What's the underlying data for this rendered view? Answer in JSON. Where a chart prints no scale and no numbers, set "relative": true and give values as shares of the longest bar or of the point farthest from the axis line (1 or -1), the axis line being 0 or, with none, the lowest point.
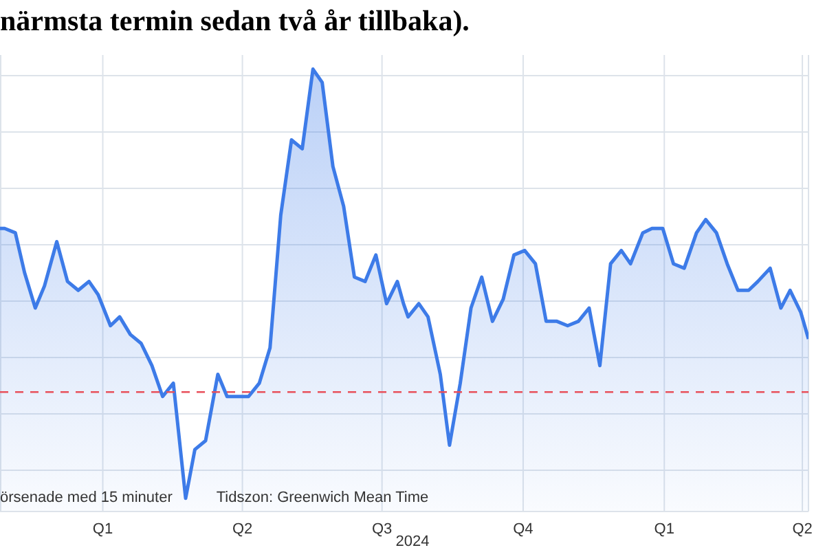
{
  "chart_data": {
    "type": "area",
    "title": "närmsta termin sedan två år tillbaka).",
    "xlabel": "2024",
    "annotations": [
      "örsenade med 15 minuter",
      "Tidszon: Greenwich Mean Time"
    ],
    "relative": true,
    "x": [
      "2023-10-26",
      "2023-10-29",
      "2023-11-05",
      "2023-11-11",
      "2023-11-18",
      "2023-11-24",
      "2023-12-02",
      "2023-12-09",
      "2023-12-16",
      "2023-12-23",
      "2023-12-29",
      "2024-01-06",
      "2024-01-12",
      "2024-01-19",
      "2024-01-26",
      "2024-02-02",
      "2024-02-09",
      "2024-02-16",
      "2024-02-24",
      "2024-03-01",
      "2024-03-08",
      "2024-03-16",
      "2024-03-22",
      "2024-03-30",
      "2024-04-05",
      "2024-04-12",
      "2024-04-19",
      "2024-04-26",
      "2024-05-03",
      "2024-05-10",
      "2024-05-17",
      "2024-05-23",
      "2024-05-30",
      "2024-06-06",
      "2024-06-13",
      "2024-06-20",
      "2024-06-27",
      "2024-07-04",
      "2024-07-11",
      "2024-07-15",
      "2024-07-18",
      "2024-07-25",
      "2024-07-31",
      "2024-08-08",
      "2024-08-14",
      "2024-08-21",
      "2024-08-28",
      "2024-09-04",
      "2024-09-11",
      "2024-09-18",
      "2024-09-25",
      "2024-10-02",
      "2024-10-09",
      "2024-10-16",
      "2024-10-23",
      "2024-10-30",
      "2024-11-06",
      "2024-11-13",
      "2024-11-20",
      "2024-11-27",
      "2024-12-04",
      "2024-12-10",
      "2024-12-18",
      "2024-12-24",
      "2024-12-31",
      "2025-01-07",
      "2025-01-14",
      "2025-01-22",
      "2025-01-28",
      "2025-02-04",
      "2025-02-11",
      "2025-02-18",
      "2025-02-25",
      "2025-03-03",
      "2025-03-11",
      "2025-03-18",
      "2025-03-24",
      "2025-03-31",
      "2025-04-05"
    ],
    "series": [
      {
        "color": "#3d7be8",
        "values": [
          0.64,
          0.64,
          0.63,
          0.54,
          0.46,
          0.51,
          0.61,
          0.52,
          0.5,
          0.52,
          0.49,
          0.42,
          0.44,
          0.4,
          0.38,
          0.33,
          0.26,
          0.29,
          0.03,
          0.14,
          0.16,
          0.31,
          0.26,
          0.26,
          0.26,
          0.29,
          0.37,
          0.67,
          0.84,
          0.82,
          1,
          0.97,
          0.78,
          0.69,
          0.53,
          0.52,
          0.58,
          0.47,
          0.52,
          0.47,
          0.44,
          0.47,
          0.44,
          0.31,
          0.15,
          0.29,
          0.46,
          0.53,
          0.43,
          0.48,
          0.58,
          0.59,
          0.56,
          0.43,
          0.43,
          0.42,
          0.43,
          0.46,
          0.33,
          0.56,
          0.59,
          0.56,
          0.63,
          0.64,
          0.64,
          0.56,
          0.55,
          0.63,
          0.66,
          0.63,
          0.56,
          0.5,
          0.5,
          0.52,
          0.55,
          0.46,
          0.5,
          0.45,
          0.39
        ]
      }
    ],
    "xlim": [
      "2023-10-26",
      "2025-04-05"
    ],
    "xticks": [
      {
        "value": "2024-01-01",
        "label": "Q1"
      },
      {
        "value": "2024-04-01",
        "label": "Q2"
      },
      {
        "value": "2024-07-01",
        "label": "Q3"
      },
      {
        "value": "2024-10-01",
        "label": "Q4"
      },
      {
        "value": "2025-01-01",
        "label": "Q1"
      },
      {
        "value": "2025-04-01",
        "label": "Q2"
      }
    ],
    "ref_lines": [
      {
        "axis": "y",
        "value": 0.27,
        "color": "#e8505b",
        "line_style": "dashed"
      }
    ],
    "grid": true,
    "marker": "none",
    "line_style": "solid"
  }
}
